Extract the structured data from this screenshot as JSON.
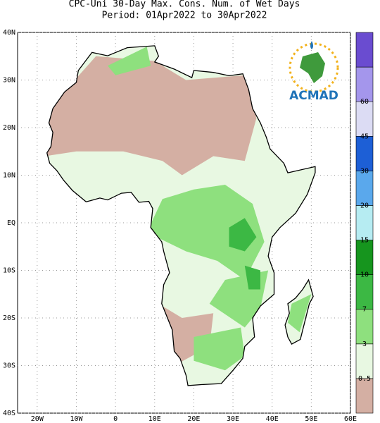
{
  "title": "CPC-Uni 30-Day Max. Cons. Num. of Wet Days",
  "subtitle": "Period: 01Apr2022 to 30Apr2022",
  "y_axis_labels": [
    "40N",
    "30N",
    "20N",
    "10N",
    "EQ",
    "10S",
    "20S",
    "30S",
    "40S"
  ],
  "x_axis_labels": [
    "20W",
    "10W",
    "0",
    "10E",
    "20E",
    "30E",
    "40E",
    "50E",
    "60E"
  ],
  "colorbar": {
    "labels": [
      "0.5",
      "3",
      "7",
      "10",
      "15",
      "20",
      "30",
      "45",
      "60"
    ]
  },
  "logo": "ACMAD"
}
